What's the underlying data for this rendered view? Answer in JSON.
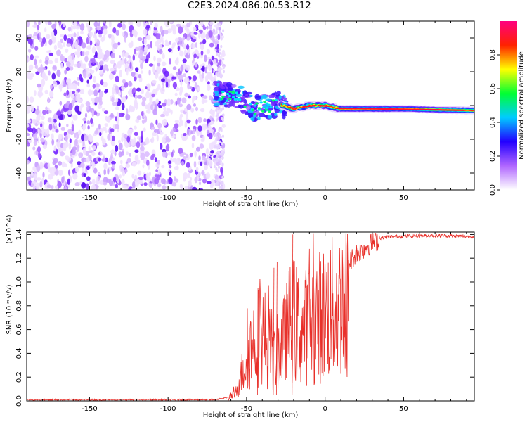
{
  "title": "C2E3.2024.086.00.53.R12",
  "chart_data": [
    {
      "type": "heatmap",
      "xlabel": "Height of straight line (km)",
      "ylabel": "Frequency (Hz)",
      "xlim": [
        -190,
        95
      ],
      "ylim": [
        -50,
        50
      ],
      "xticks": [
        -150,
        -100,
        -50,
        0,
        50
      ],
      "yticks": [
        -40,
        -20,
        0,
        20,
        40
      ],
      "colorbar": {
        "label": "Normalized spectral amplitude",
        "range": [
          0.0,
          1.0
        ],
        "ticks": [
          "0.0",
          "0.2",
          "0.4",
          "0.6",
          "0.8"
        ],
        "tick_values": [
          0.0,
          0.2,
          0.4,
          0.6,
          0.8
        ],
        "colors": [
          "#ffffff",
          "#b066ff",
          "#2200ff",
          "#00ccff",
          "#00ff33",
          "#ffff00",
          "#ff2200",
          "#ff0080"
        ]
      },
      "features": {
        "noise_region_x": [
          -190,
          -68
        ],
        "signal_track": [
          {
            "x": -70,
            "y": 7
          },
          {
            "x": -55,
            "y": 5
          },
          {
            "x": -45,
            "y": -2
          },
          {
            "x": -30,
            "y": 1
          },
          {
            "x": -20,
            "y": -2
          },
          {
            "x": -10,
            "y": 0
          },
          {
            "x": 0,
            "y": 0
          },
          {
            "x": 10,
            "y": -2
          },
          {
            "x": 50,
            "y": -2
          },
          {
            "x": 95,
            "y": -3
          }
        ]
      }
    },
    {
      "type": "line",
      "xlabel": "Height of straight line (km)",
      "ylabel": "SNR (10 * v/v)",
      "y_multiplier": "(x10^4)",
      "xlim": [
        -190,
        95
      ],
      "ylim": [
        0,
        1.42
      ],
      "xticks": [
        -150,
        -100,
        -50,
        0,
        50
      ],
      "yticks": [
        0.0,
        0.2,
        0.4,
        0.6,
        0.8,
        1.0,
        1.2,
        1.4
      ],
      "series": [
        {
          "color": "#e8302a",
          "envelope": [
            {
              "x": -190,
              "y": 0.01
            },
            {
              "x": -70,
              "y": 0.01
            },
            {
              "x": -62,
              "y": 0.03
            },
            {
              "x": -57,
              "y": 0.08
            },
            {
              "x": -52,
              "y": 0.35
            },
            {
              "x": -48,
              "y": 0.55
            },
            {
              "x": -44,
              "y": 0.7
            },
            {
              "x": -40,
              "y": 0.75
            },
            {
              "x": -36,
              "y": 0.6
            },
            {
              "x": -32,
              "y": 0.45
            },
            {
              "x": -26,
              "y": 0.65
            },
            {
              "x": -21,
              "y": 0.9
            },
            {
              "x": -15,
              "y": 0.75
            },
            {
              "x": -10,
              "y": 0.85
            },
            {
              "x": -5,
              "y": 0.9
            },
            {
              "x": 0,
              "y": 0.95
            },
            {
              "x": 5,
              "y": 1.0
            },
            {
              "x": 10,
              "y": 1.05
            },
            {
              "x": 15,
              "y": 1.18
            },
            {
              "x": 20,
              "y": 1.26
            },
            {
              "x": 25,
              "y": 1.3
            },
            {
              "x": 30,
              "y": 1.35
            },
            {
              "x": 35,
              "y": 1.37
            },
            {
              "x": 40,
              "y": 1.38
            },
            {
              "x": 60,
              "y": 1.39
            },
            {
              "x": 80,
              "y": 1.39
            },
            {
              "x": 95,
              "y": 1.38
            }
          ]
        }
      ]
    }
  ]
}
